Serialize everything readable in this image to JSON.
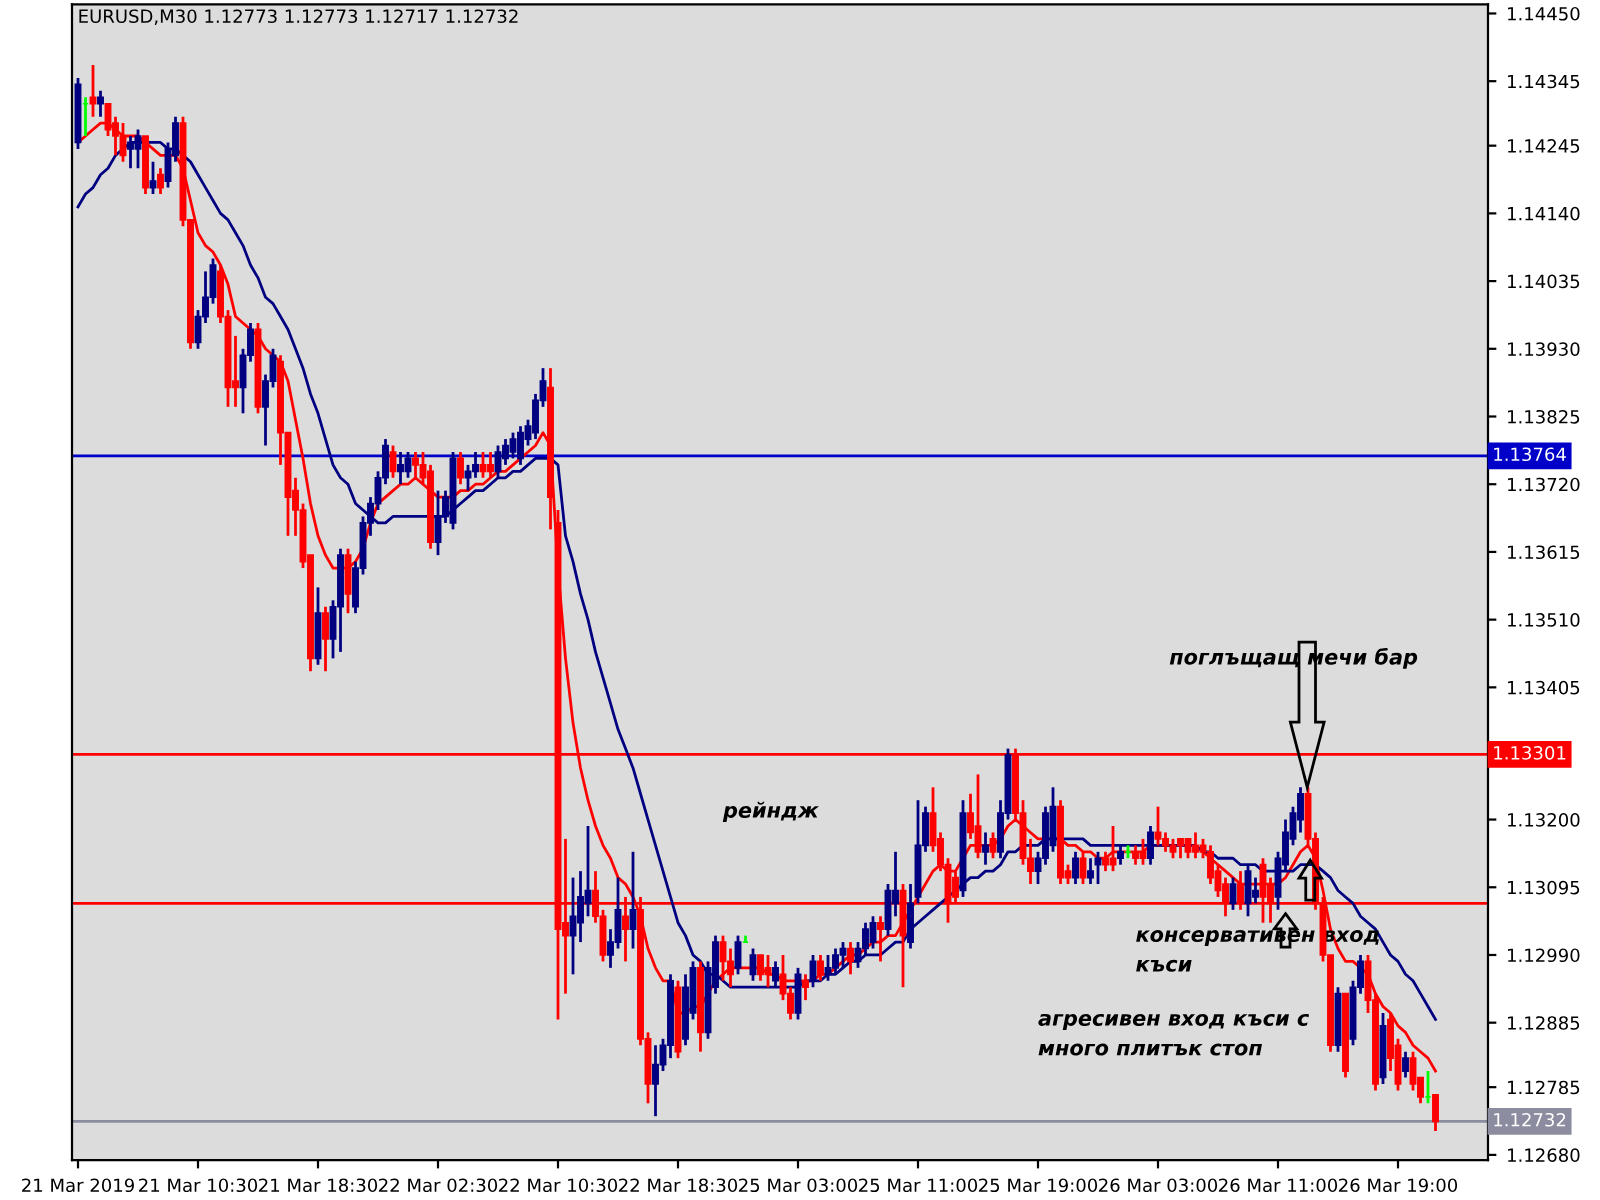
{
  "chart_data": {
    "type": "candlestick",
    "title": "EURUSD,M30 1.12773 1.12773 1.12717 1.12732",
    "categories": [
      "21 Mar 2019",
      null,
      null,
      null,
      null,
      null,
      null,
      null,
      null,
      null,
      null,
      null,
      null,
      null,
      null,
      null,
      "21 Mar 10:30",
      null,
      null,
      null,
      null,
      null,
      null,
      null,
      null,
      null,
      null,
      null,
      null,
      null,
      null,
      null,
      "21 Mar 18:30",
      null,
      null,
      null,
      null,
      null,
      null,
      null,
      null,
      null,
      null,
      null,
      null,
      null,
      null,
      null,
      "22 Mar 02:30",
      null,
      null,
      null,
      null,
      null,
      null,
      null,
      null,
      null,
      null,
      null,
      null,
      null,
      null,
      null,
      "22 Mar 10:30",
      null,
      null,
      null,
      null,
      null,
      null,
      null,
      null,
      null,
      null,
      null,
      null,
      null,
      null,
      null,
      "22 Mar 18:30",
      null,
      null,
      null,
      null,
      null,
      null,
      null,
      null,
      null,
      null,
      null,
      null,
      null,
      null,
      null,
      "25 Mar 03:00",
      null,
      null,
      null,
      null,
      null,
      null,
      null,
      null,
      null,
      null,
      null,
      null,
      null,
      null,
      null,
      "25 Mar 11:00",
      null,
      null,
      null,
      null,
      null,
      null,
      null,
      null,
      null,
      null,
      null,
      null,
      null,
      null,
      null,
      "25 Mar 19:00",
      null,
      null,
      null,
      null,
      null,
      null,
      null,
      null,
      null,
      null,
      null,
      null,
      null,
      null,
      null,
      "26 Mar 03:00",
      null,
      null,
      null,
      null,
      null,
      null,
      null,
      null,
      null,
      null,
      null,
      null,
      null,
      null,
      null,
      "26 Mar 11:00",
      null,
      null,
      null,
      null,
      null,
      null,
      null,
      null,
      null,
      null,
      null,
      null,
      null,
      null,
      null,
      "26 Mar 19:00",
      null,
      null,
      null,
      null,
      null
    ],
    "colors": [
      "#000080",
      "#00ff00",
      "#ff0000",
      "#000080",
      "#ff0000",
      "#ff0000",
      "#ff0000",
      "#000080",
      "#000080",
      "#ff0000",
      "#000080",
      "#ff0000",
      "#000080",
      "#000080",
      "#ff0000",
      "#ff0000",
      "#000080",
      "#000080",
      "#000080",
      "#ff0000",
      "#ff0000",
      "#ff0000",
      "#000080",
      "#000080",
      "#ff0000",
      "#000080",
      "#000080",
      "#ff0000",
      "#ff0000",
      "#ff0000",
      "#ff0000",
      "#ff0000",
      "#000080",
      "#ff0000",
      "#000080",
      "#000080",
      "#ff0000",
      "#000080",
      "#000080",
      "#000080",
      "#000080",
      "#000080",
      "#ff0000",
      "#000080",
      "#000080",
      "#ff0000",
      "#ff0000",
      "#ff0000",
      "#000080",
      "#000080",
      "#000080",
      "#ff0000",
      "#000080",
      "#000080",
      "#ff0000",
      "#ff0000",
      "#000080",
      "#000080",
      "#000080",
      "#000080",
      "#000080",
      "#000080",
      "#000080",
      "#ff0000",
      "#ff0000",
      "#ff0000",
      "#000080",
      "#000080",
      "#000080",
      "#ff0000",
      "#ff0000",
      "#000080",
      "#000080",
      "#ff0000",
      "#000080",
      "#ff0000",
      "#ff0000",
      "#000080",
      "#000080",
      "#000080",
      "#ff0000",
      "#000080",
      "#000080",
      "#ff0000",
      "#000080",
      "#000080",
      "#ff0000",
      "#ff0000",
      "#000080",
      "#00ff00",
      "#000080",
      "#ff0000",
      "#ff0000",
      "#000080",
      "#ff0000",
      "#ff0000",
      "#000080",
      "#ff0000",
      "#000080",
      "#ff0000",
      "#000080",
      "#000080",
      "#000080",
      "#ff0000",
      "#000080",
      "#000080",
      "#000080",
      "#ff0000",
      "#000080",
      "#000080",
      "#ff0000",
      "#000080",
      "#000080",
      "#000080",
      "#ff0000",
      "#ff0000",
      "#ff0000",
      "#ff0000",
      "#000080",
      "#ff0000",
      "#ff0000",
      "#000080",
      "#ff0000",
      "#000080",
      "#000080",
      "#ff0000",
      "#ff0000",
      "#ff0000",
      "#000080",
      "#000080",
      "#000080",
      "#ff0000",
      "#ff0000",
      "#000080",
      "#ff0000",
      "#000080",
      "#000080",
      "#ff0000",
      "#ff0000",
      "#000080",
      "#00ff00",
      "#ff0000",
      "#ff0000",
      "#000080",
      "#ff0000",
      "#ff0000",
      "#ff0000",
      "#ff0000",
      "#ff0000",
      "#ff0000",
      "#ff0000",
      "#ff0000",
      "#ff0000",
      "#ff0000",
      "#000080",
      "#ff0000",
      "#000080",
      "#000080",
      "#ff0000",
      "#ff0000",
      "#000080",
      "#000080",
      "#000080",
      "#000080",
      "#ff0000",
      "#ff0000",
      "#ff0000",
      "#ff0000",
      "#000080",
      "#ff0000",
      "#000080",
      "#000080",
      "#ff0000",
      "#ff0000",
      "#000080",
      "#ff0000",
      "#ff0000",
      "#000080",
      "#ff0000",
      "#ff0000",
      "#00ff00",
      "#ff0000"
    ],
    "ohlc": [
      [
        1.1425,
        1.1435,
        1.1424,
        1.1434
      ],
      [
        1.1431,
        1.1432,
        1.1426,
        1.1431
      ],
      [
        1.1432,
        1.1437,
        1.1429,
        1.1431
      ],
      [
        1.1431,
        1.1433,
        1.1429,
        1.1432
      ],
      [
        1.1431,
        1.1431,
        1.1426,
        1.1427
      ],
      [
        1.1428,
        1.1429,
        1.1423,
        1.1426
      ],
      [
        1.1426,
        1.1428,
        1.1422,
        1.1423
      ],
      [
        1.1424,
        1.1426,
        1.1421,
        1.1425
      ],
      [
        1.1424,
        1.1427,
        1.1421,
        1.1426
      ],
      [
        1.1426,
        1.1426,
        1.1417,
        1.1418
      ],
      [
        1.1418,
        1.1422,
        1.1417,
        1.1419
      ],
      [
        1.142,
        1.1421,
        1.1417,
        1.1418
      ],
      [
        1.1419,
        1.1425,
        1.1418,
        1.1424
      ],
      [
        1.1423,
        1.1429,
        1.1422,
        1.1428
      ],
      [
        1.1428,
        1.1429,
        1.1412,
        1.1413
      ],
      [
        1.1413,
        1.1413,
        1.1393,
        1.1394
      ],
      [
        1.1394,
        1.1399,
        1.1393,
        1.1398
      ],
      [
        1.1398,
        1.1405,
        1.1397,
        1.1401
      ],
      [
        1.1401,
        1.1407,
        1.14,
        1.1406
      ],
      [
        1.1405,
        1.1406,
        1.1397,
        1.1398
      ],
      [
        1.1398,
        1.1399,
        1.1384,
        1.1387
      ],
      [
        1.1388,
        1.1395,
        1.1384,
        1.1387
      ],
      [
        1.1387,
        1.1393,
        1.1383,
        1.1392
      ],
      [
        1.1392,
        1.1397,
        1.1391,
        1.1396
      ],
      [
        1.1396,
        1.1397,
        1.1383,
        1.1384
      ],
      [
        1.1384,
        1.1389,
        1.1378,
        1.1388
      ],
      [
        1.1388,
        1.1393,
        1.1387,
        1.1392
      ],
      [
        1.1391,
        1.1392,
        1.1375,
        1.138
      ],
      [
        1.138,
        1.138,
        1.1364,
        1.137
      ],
      [
        1.1371,
        1.1373,
        1.1364,
        1.1368
      ],
      [
        1.1368,
        1.1369,
        1.1359,
        1.136
      ],
      [
        1.1361,
        1.1361,
        1.1343,
        1.1345
      ],
      [
        1.1345,
        1.1356,
        1.1344,
        1.1352
      ],
      [
        1.1352,
        1.1353,
        1.1343,
        1.1348
      ],
      [
        1.1348,
        1.1354,
        1.1345,
        1.1353
      ],
      [
        1.1353,
        1.1362,
        1.1346,
        1.1361
      ],
      [
        1.1361,
        1.1362,
        1.1352,
        1.1355
      ],
      [
        1.1353,
        1.136,
        1.1352,
        1.1359
      ],
      [
        1.1359,
        1.1367,
        1.1358,
        1.1366
      ],
      [
        1.1366,
        1.137,
        1.1364,
        1.1369
      ],
      [
        1.1369,
        1.1374,
        1.1368,
        1.1373
      ],
      [
        1.1373,
        1.1379,
        1.1372,
        1.1378
      ],
      [
        1.1377,
        1.1378,
        1.1373,
        1.1374
      ],
      [
        1.1374,
        1.1377,
        1.1372,
        1.1375
      ],
      [
        1.1374,
        1.1377,
        1.1373,
        1.1376
      ],
      [
        1.1376,
        1.1377,
        1.1373,
        1.1375
      ],
      [
        1.1375,
        1.1377,
        1.1372,
        1.1373
      ],
      [
        1.1374,
        1.1375,
        1.1362,
        1.1363
      ],
      [
        1.1363,
        1.1371,
        1.1361,
        1.1367
      ],
      [
        1.1367,
        1.1371,
        1.1366,
        1.137
      ],
      [
        1.1366,
        1.1377,
        1.1365,
        1.1376
      ],
      [
        1.1376,
        1.1377,
        1.1372,
        1.1373
      ],
      [
        1.1373,
        1.1375,
        1.1371,
        1.1374
      ],
      [
        1.1374,
        1.1377,
        1.1373,
        1.1375
      ],
      [
        1.1375,
        1.1377,
        1.1373,
        1.1374
      ],
      [
        1.1375,
        1.1377,
        1.1373,
        1.1374
      ],
      [
        1.1374,
        1.1378,
        1.1373,
        1.1377
      ],
      [
        1.1376,
        1.1379,
        1.1375,
        1.1378
      ],
      [
        1.1377,
        1.138,
        1.1376,
        1.1379
      ],
      [
        1.1376,
        1.1381,
        1.1375,
        1.138
      ],
      [
        1.1379,
        1.1382,
        1.1378,
        1.1381
      ],
      [
        1.138,
        1.1386,
        1.1379,
        1.1385
      ],
      [
        1.1385,
        1.139,
        1.1384,
        1.1388
      ],
      [
        1.1387,
        1.139,
        1.1365,
        1.137
      ],
      [
        1.1366,
        1.1368,
        1.1289,
        1.1303
      ],
      [
        1.1304,
        1.1317,
        1.1293,
        1.1302
      ],
      [
        1.1302,
        1.1311,
        1.1296,
        1.1305
      ],
      [
        1.1304,
        1.1312,
        1.1301,
        1.1308
      ],
      [
        1.1307,
        1.1319,
        1.1305,
        1.1309
      ],
      [
        1.1309,
        1.1312,
        1.1304,
        1.1305
      ],
      [
        1.1305,
        1.1306,
        1.1298,
        1.1299
      ],
      [
        1.1299,
        1.1303,
        1.1297,
        1.1301
      ],
      [
        1.1301,
        1.1311,
        1.13,
        1.1306
      ],
      [
        1.1305,
        1.1308,
        1.1298,
        1.1303
      ],
      [
        1.1303,
        1.1315,
        1.13,
        1.1306
      ],
      [
        1.1306,
        1.1308,
        1.1285,
        1.1286
      ],
      [
        1.1286,
        1.1287,
        1.1276,
        1.1279
      ],
      [
        1.1279,
        1.1285,
        1.1274,
        1.1282
      ],
      [
        1.1282,
        1.1286,
        1.1281,
        1.1285
      ],
      [
        1.1285,
        1.1296,
        1.1283,
        1.1295
      ],
      [
        1.1294,
        1.1295,
        1.1283,
        1.1284
      ],
      [
        1.1286,
        1.1296,
        1.1285,
        1.1294
      ],
      [
        1.129,
        1.1298,
        1.1289,
        1.1297
      ],
      [
        1.1297,
        1.1298,
        1.1284,
        1.1287
      ],
      [
        1.1287,
        1.1298,
        1.1286,
        1.1297
      ],
      [
        1.1294,
        1.1302,
        1.1293,
        1.1301
      ],
      [
        1.1301,
        1.1302,
        1.1295,
        1.1298
      ],
      [
        1.1298,
        1.13,
        1.1294,
        1.1296
      ],
      [
        1.1297,
        1.1302,
        1.1296,
        1.1301
      ],
      [
        1.1301,
        1.1302,
        1.1301,
        1.1301
      ],
      [
        1.1296,
        1.13,
        1.1295,
        1.1299
      ],
      [
        1.1299,
        1.1299,
        1.1295,
        1.1296
      ],
      [
        1.1297,
        1.1299,
        1.1294,
        1.1296
      ],
      [
        1.1295,
        1.1298,
        1.1294,
        1.1297
      ],
      [
        1.1296,
        1.1299,
        1.1292,
        1.1293
      ],
      [
        1.1293,
        1.1294,
        1.1289,
        1.129
      ],
      [
        1.129,
        1.1297,
        1.1289,
        1.1296
      ],
      [
        1.1295,
        1.1296,
        1.1292,
        1.1294
      ],
      [
        1.1295,
        1.1299,
        1.1294,
        1.1298
      ],
      [
        1.1298,
        1.1299,
        1.1295,
        1.1296
      ],
      [
        1.1296,
        1.1299,
        1.1295,
        1.1297
      ],
      [
        1.1297,
        1.13,
        1.1296,
        1.1299
      ],
      [
        1.1299,
        1.1301,
        1.1297,
        1.13
      ],
      [
        1.13,
        1.1301,
        1.1296,
        1.1298
      ],
      [
        1.1298,
        1.1301,
        1.1297,
        1.13
      ],
      [
        1.13,
        1.1304,
        1.1299,
        1.1303
      ],
      [
        1.1301,
        1.1305,
        1.13,
        1.1304
      ],
      [
        1.1304,
        1.1305,
        1.1298,
        1.1303
      ],
      [
        1.1303,
        1.131,
        1.1302,
        1.1309
      ],
      [
        1.1307,
        1.1315,
        1.1305,
        1.1309
      ],
      [
        1.1309,
        1.131,
        1.1294,
        1.1302
      ],
      [
        1.1301,
        1.131,
        1.13,
        1.1307
      ],
      [
        1.1308,
        1.1323,
        1.1307,
        1.1316
      ],
      [
        1.1316,
        1.1322,
        1.1315,
        1.1321
      ],
      [
        1.1321,
        1.1325,
        1.1315,
        1.1316
      ],
      [
        1.1317,
        1.1318,
        1.1312,
        1.1313
      ],
      [
        1.1313,
        1.1314,
        1.1304,
        1.1307
      ],
      [
        1.1311,
        1.1312,
        1.1307,
        1.1308
      ],
      [
        1.1309,
        1.1323,
        1.1308,
        1.1321
      ],
      [
        1.1321,
        1.1324,
        1.1317,
        1.1318
      ],
      [
        1.1319,
        1.1327,
        1.1314,
        1.1315
      ],
      [
        1.1315,
        1.1318,
        1.1313,
        1.1316
      ],
      [
        1.1317,
        1.1318,
        1.1314,
        1.1315
      ],
      [
        1.1315,
        1.1323,
        1.1314,
        1.1321
      ],
      [
        1.1321,
        1.1331,
        1.132,
        1.133
      ],
      [
        1.133,
        1.1331,
        1.132,
        1.1321
      ],
      [
        1.1321,
        1.1323,
        1.1313,
        1.1314
      ],
      [
        1.1314,
        1.1317,
        1.131,
        1.1312
      ],
      [
        1.1312,
        1.1315,
        1.131,
        1.1314
      ],
      [
        1.1314,
        1.1322,
        1.1313,
        1.1321
      ],
      [
        1.1316,
        1.1325,
        1.1315,
        1.1322
      ],
      [
        1.1322,
        1.1323,
        1.131,
        1.1311
      ],
      [
        1.1312,
        1.1313,
        1.131,
        1.1311
      ],
      [
        1.1311,
        1.1315,
        1.131,
        1.1314
      ],
      [
        1.1314,
        1.1315,
        1.131,
        1.1311
      ],
      [
        1.1311,
        1.1314,
        1.131,
        1.1312
      ],
      [
        1.1313,
        1.1315,
        1.131,
        1.1314
      ],
      [
        1.1314,
        1.1315,
        1.1312,
        1.1313
      ],
      [
        1.1314,
        1.1319,
        1.1312,
        1.1313
      ],
      [
        1.1314,
        1.1316,
        1.1313,
        1.1315
      ],
      [
        1.1315,
        1.1316,
        1.1314,
        1.1315
      ],
      [
        1.1315,
        1.1316,
        1.1313,
        1.1314
      ],
      [
        1.1315,
        1.1317,
        1.1313,
        1.1314
      ],
      [
        1.1314,
        1.1319,
        1.1313,
        1.1318
      ],
      [
        1.1318,
        1.1322,
        1.1316,
        1.1317
      ],
      [
        1.1317,
        1.1318,
        1.1315,
        1.1316
      ],
      [
        1.1316,
        1.1317,
        1.1314,
        1.1315
      ],
      [
        1.1317,
        1.1317,
        1.1314,
        1.1316
      ],
      [
        1.1317,
        1.1317,
        1.1314,
        1.1315
      ],
      [
        1.1316,
        1.1318,
        1.1314,
        1.1315
      ],
      [
        1.1316,
        1.1317,
        1.1314,
        1.1315
      ],
      [
        1.1315,
        1.1316,
        1.131,
        1.1311
      ],
      [
        1.1312,
        1.1313,
        1.1308,
        1.1309
      ],
      [
        1.131,
        1.1311,
        1.1305,
        1.1307
      ],
      [
        1.1307,
        1.1311,
        1.1306,
        1.131
      ],
      [
        1.131,
        1.1312,
        1.1306,
        1.1307
      ],
      [
        1.1307,
        1.1313,
        1.1305,
        1.1312
      ],
      [
        1.1308,
        1.1311,
        1.1307,
        1.1309
      ],
      [
        1.1313,
        1.1314,
        1.1304,
        1.1308
      ],
      [
        1.131,
        1.1311,
        1.1304,
        1.1307
      ],
      [
        1.1308,
        1.1315,
        1.1306,
        1.1314
      ],
      [
        1.1313,
        1.132,
        1.1312,
        1.1318
      ],
      [
        1.1317,
        1.1322,
        1.1316,
        1.1321
      ],
      [
        1.132,
        1.1325,
        1.1318,
        1.1324
      ],
      [
        1.1324,
        1.1325,
        1.1316,
        1.1317
      ],
      [
        1.1317,
        1.1318,
        1.1306,
        1.1307
      ],
      [
        1.1307,
        1.1308,
        1.1298,
        1.1299
      ],
      [
        1.1299,
        1.1299,
        1.1284,
        1.1285
      ],
      [
        1.1285,
        1.1294,
        1.1284,
        1.1293
      ],
      [
        1.1293,
        1.1293,
        1.128,
        1.1281
      ],
      [
        1.1286,
        1.1295,
        1.1285,
        1.1294
      ],
      [
        1.1294,
        1.1299,
        1.1293,
        1.1298
      ],
      [
        1.1298,
        1.1299,
        1.129,
        1.1292
      ],
      [
        1.1292,
        1.1293,
        1.1278,
        1.1279
      ],
      [
        1.128,
        1.129,
        1.1279,
        1.1288
      ],
      [
        1.1289,
        1.129,
        1.1281,
        1.1283
      ],
      [
        1.1285,
        1.1286,
        1.1278,
        1.1279
      ],
      [
        1.1281,
        1.1284,
        1.128,
        1.1283
      ],
      [
        1.1283,
        1.1284,
        1.1278,
        1.1279
      ],
      [
        1.128,
        1.128,
        1.1276,
        1.1277
      ],
      [
        1.1277,
        1.1281,
        1.1276,
        1.1277
      ],
      [
        1.12773,
        1.12773,
        1.12717,
        1.12732
      ]
    ],
    "series": [
      {
        "type": "line",
        "color": "#ff0000",
        "values": [
          1.1425,
          1.1426,
          1.1427,
          1.1428,
          1.1428,
          1.1427,
          1.1426,
          1.1426,
          1.1426,
          1.1425,
          1.1424,
          1.1423,
          1.1423,
          1.1423,
          1.1421,
          1.1416,
          1.1411,
          1.1409,
          1.1408,
          1.1406,
          1.1403,
          1.1398,
          1.1397,
          1.1396,
          1.1395,
          1.1393,
          1.1392,
          1.1391,
          1.1388,
          1.1382,
          1.1376,
          1.1369,
          1.1364,
          1.1361,
          1.1359,
          1.1359,
          1.1359,
          1.136,
          1.1362,
          1.1366,
          1.1369,
          1.137,
          1.1371,
          1.1372,
          1.1372,
          1.1373,
          1.1372,
          1.1371,
          1.137,
          1.137,
          1.137,
          1.1371,
          1.1371,
          1.1372,
          1.1372,
          1.1373,
          1.1374,
          1.1374,
          1.1375,
          1.1376,
          1.1377,
          1.1378,
          1.138,
          1.1378,
          1.1359,
          1.1345,
          1.1335,
          1.1328,
          1.1323,
          1.1319,
          1.1316,
          1.1314,
          1.1311,
          1.131,
          1.1308,
          1.1305,
          1.13,
          1.1297,
          1.1295,
          1.1295,
          1.129,
          1.129,
          1.1291,
          1.1291,
          1.1293,
          1.1295,
          1.1296,
          1.1297,
          1.1297,
          1.1297,
          1.1297,
          1.1297,
          1.1296,
          1.1296,
          1.1295,
          1.1295,
          1.1295,
          1.1295,
          1.1295,
          1.1296,
          1.1296,
          1.1297,
          1.1298,
          1.1299,
          1.1299,
          1.13,
          1.1301,
          1.1301,
          1.1302,
          1.1302,
          1.1304,
          1.1306,
          1.1308,
          1.131,
          1.1312,
          1.1313,
          1.1312,
          1.1312,
          1.1314,
          1.1316,
          1.1316,
          1.1316,
          1.1316,
          1.1317,
          1.1319,
          1.132,
          1.1319,
          1.1318,
          1.1317,
          1.1317,
          1.1317,
          1.1317,
          1.1316,
          1.1316,
          1.1315,
          1.1315,
          1.1314,
          1.1314,
          1.1315,
          1.1315,
          1.1315,
          1.1315,
          1.1315,
          1.1316,
          1.1316,
          1.1316,
          1.1316,
          1.1316,
          1.1316,
          1.1316,
          1.1315,
          1.1314,
          1.1313,
          1.1312,
          1.1311,
          1.131,
          1.131,
          1.131,
          1.131,
          1.131,
          1.131,
          1.1311,
          1.1313,
          1.1315,
          1.1316,
          1.1314,
          1.1309,
          1.1303,
          1.13,
          1.1298,
          1.1298,
          1.1297,
          1.1296,
          1.1293,
          1.1291,
          1.129,
          1.1288,
          1.1287,
          1.1285,
          1.1284,
          1.1283,
          1.1281
        ]
      },
      {
        "type": "line",
        "color": "#000080",
        "values": [
          1.1415,
          1.1417,
          1.1418,
          1.142,
          1.1421,
          1.1423,
          1.1424,
          1.1425,
          1.1425,
          1.1425,
          1.1425,
          1.1425,
          1.1424,
          1.1424,
          1.1423,
          1.1422,
          1.142,
          1.1418,
          1.1416,
          1.1414,
          1.1413,
          1.1411,
          1.1409,
          1.1406,
          1.1404,
          1.1401,
          1.14,
          1.1398,
          1.1396,
          1.1393,
          1.139,
          1.1386,
          1.1383,
          1.1379,
          1.1375,
          1.1373,
          1.1372,
          1.1369,
          1.1368,
          1.1367,
          1.1366,
          1.1366,
          1.1367,
          1.1367,
          1.1367,
          1.1367,
          1.1367,
          1.1367,
          1.1367,
          1.1367,
          1.1368,
          1.1369,
          1.137,
          1.1371,
          1.1371,
          1.1372,
          1.1373,
          1.1373,
          1.1374,
          1.1374,
          1.1375,
          1.1376,
          1.1376,
          1.1376,
          1.1375,
          1.1364,
          1.136,
          1.1355,
          1.1351,
          1.1346,
          1.1342,
          1.1338,
          1.1334,
          1.1331,
          1.1328,
          1.1324,
          1.132,
          1.1316,
          1.1312,
          1.1308,
          1.1304,
          1.1302,
          1.1299,
          1.1298,
          1.1296,
          1.1296,
          1.1295,
          1.1294,
          1.1294,
          1.1294,
          1.1294,
          1.1294,
          1.1294,
          1.1294,
          1.1294,
          1.1294,
          1.1294,
          1.1295,
          1.1295,
          1.1295,
          1.1296,
          1.1296,
          1.1297,
          1.1298,
          1.1298,
          1.1299,
          1.1299,
          1.1299,
          1.13,
          1.1301,
          1.1301,
          1.1303,
          1.1304,
          1.1305,
          1.1306,
          1.1307,
          1.1308,
          1.1309,
          1.131,
          1.1311,
          1.1311,
          1.1312,
          1.1312,
          1.1313,
          1.1315,
          1.1315,
          1.1316,
          1.1316,
          1.1316,
          1.1317,
          1.1317,
          1.1317,
          1.1317,
          1.1317,
          1.1317,
          1.1316,
          1.1316,
          1.1316,
          1.1316,
          1.1316,
          1.1316,
          1.1316,
          1.1316,
          1.1316,
          1.1316,
          1.1316,
          1.1316,
          1.1316,
          1.1316,
          1.1316,
          1.1315,
          1.1315,
          1.1314,
          1.1314,
          1.1314,
          1.1313,
          1.1313,
          1.1313,
          1.1312,
          1.1312,
          1.1312,
          1.1312,
          1.1312,
          1.1313,
          1.1313,
          1.1313,
          1.1312,
          1.1311,
          1.1309,
          1.1308,
          1.1307,
          1.1305,
          1.1304,
          1.1303,
          1.1301,
          1.1299,
          1.1298,
          1.1296,
          1.1295,
          1.1293,
          1.1291,
          1.1289
        ]
      }
    ],
    "ylim": [
      1.12672,
      1.14464
    ],
    "yticks": [
      {
        "value": 1.1445,
        "label": "1.14450"
      },
      1.14345,
      1.14245,
      {
        "value": 1.1414,
        "label": "1.14140"
      },
      1.14035,
      {
        "value": 1.1393,
        "label": "1.13930"
      },
      1.13825,
      {
        "value": 1.1372,
        "label": "1.13720"
      },
      1.13615,
      {
        "value": 1.1351,
        "label": "1.13510"
      },
      1.13405,
      {
        "value": 1.132,
        "label": "1.13200"
      },
      1.13095,
      {
        "value": 1.1299,
        "label": "1.12990"
      },
      1.12885,
      1.12785,
      {
        "value": 1.1268,
        "label": "1.12680"
      }
    ],
    "ref_lines": [
      {
        "axis": "y",
        "value": 1.13764,
        "label": "1.13764",
        "color": "#0000c8"
      },
      {
        "axis": "y",
        "value": 1.13301,
        "label": "1.13301",
        "color": "#ff0000"
      },
      {
        "axis": "y",
        "value": 1.1307,
        "color": "#ff0000"
      },
      {
        "axis": "y",
        "value": 1.12732,
        "label": "1.12732",
        "color": "#8c8ca0"
      }
    ],
    "annotations": [
      "поглъщащ мечи бар",
      "рейндж",
      "агресивен вход къси с\nмного плитък стоп",
      "консервативен вход\nкъси"
    ]
  }
}
